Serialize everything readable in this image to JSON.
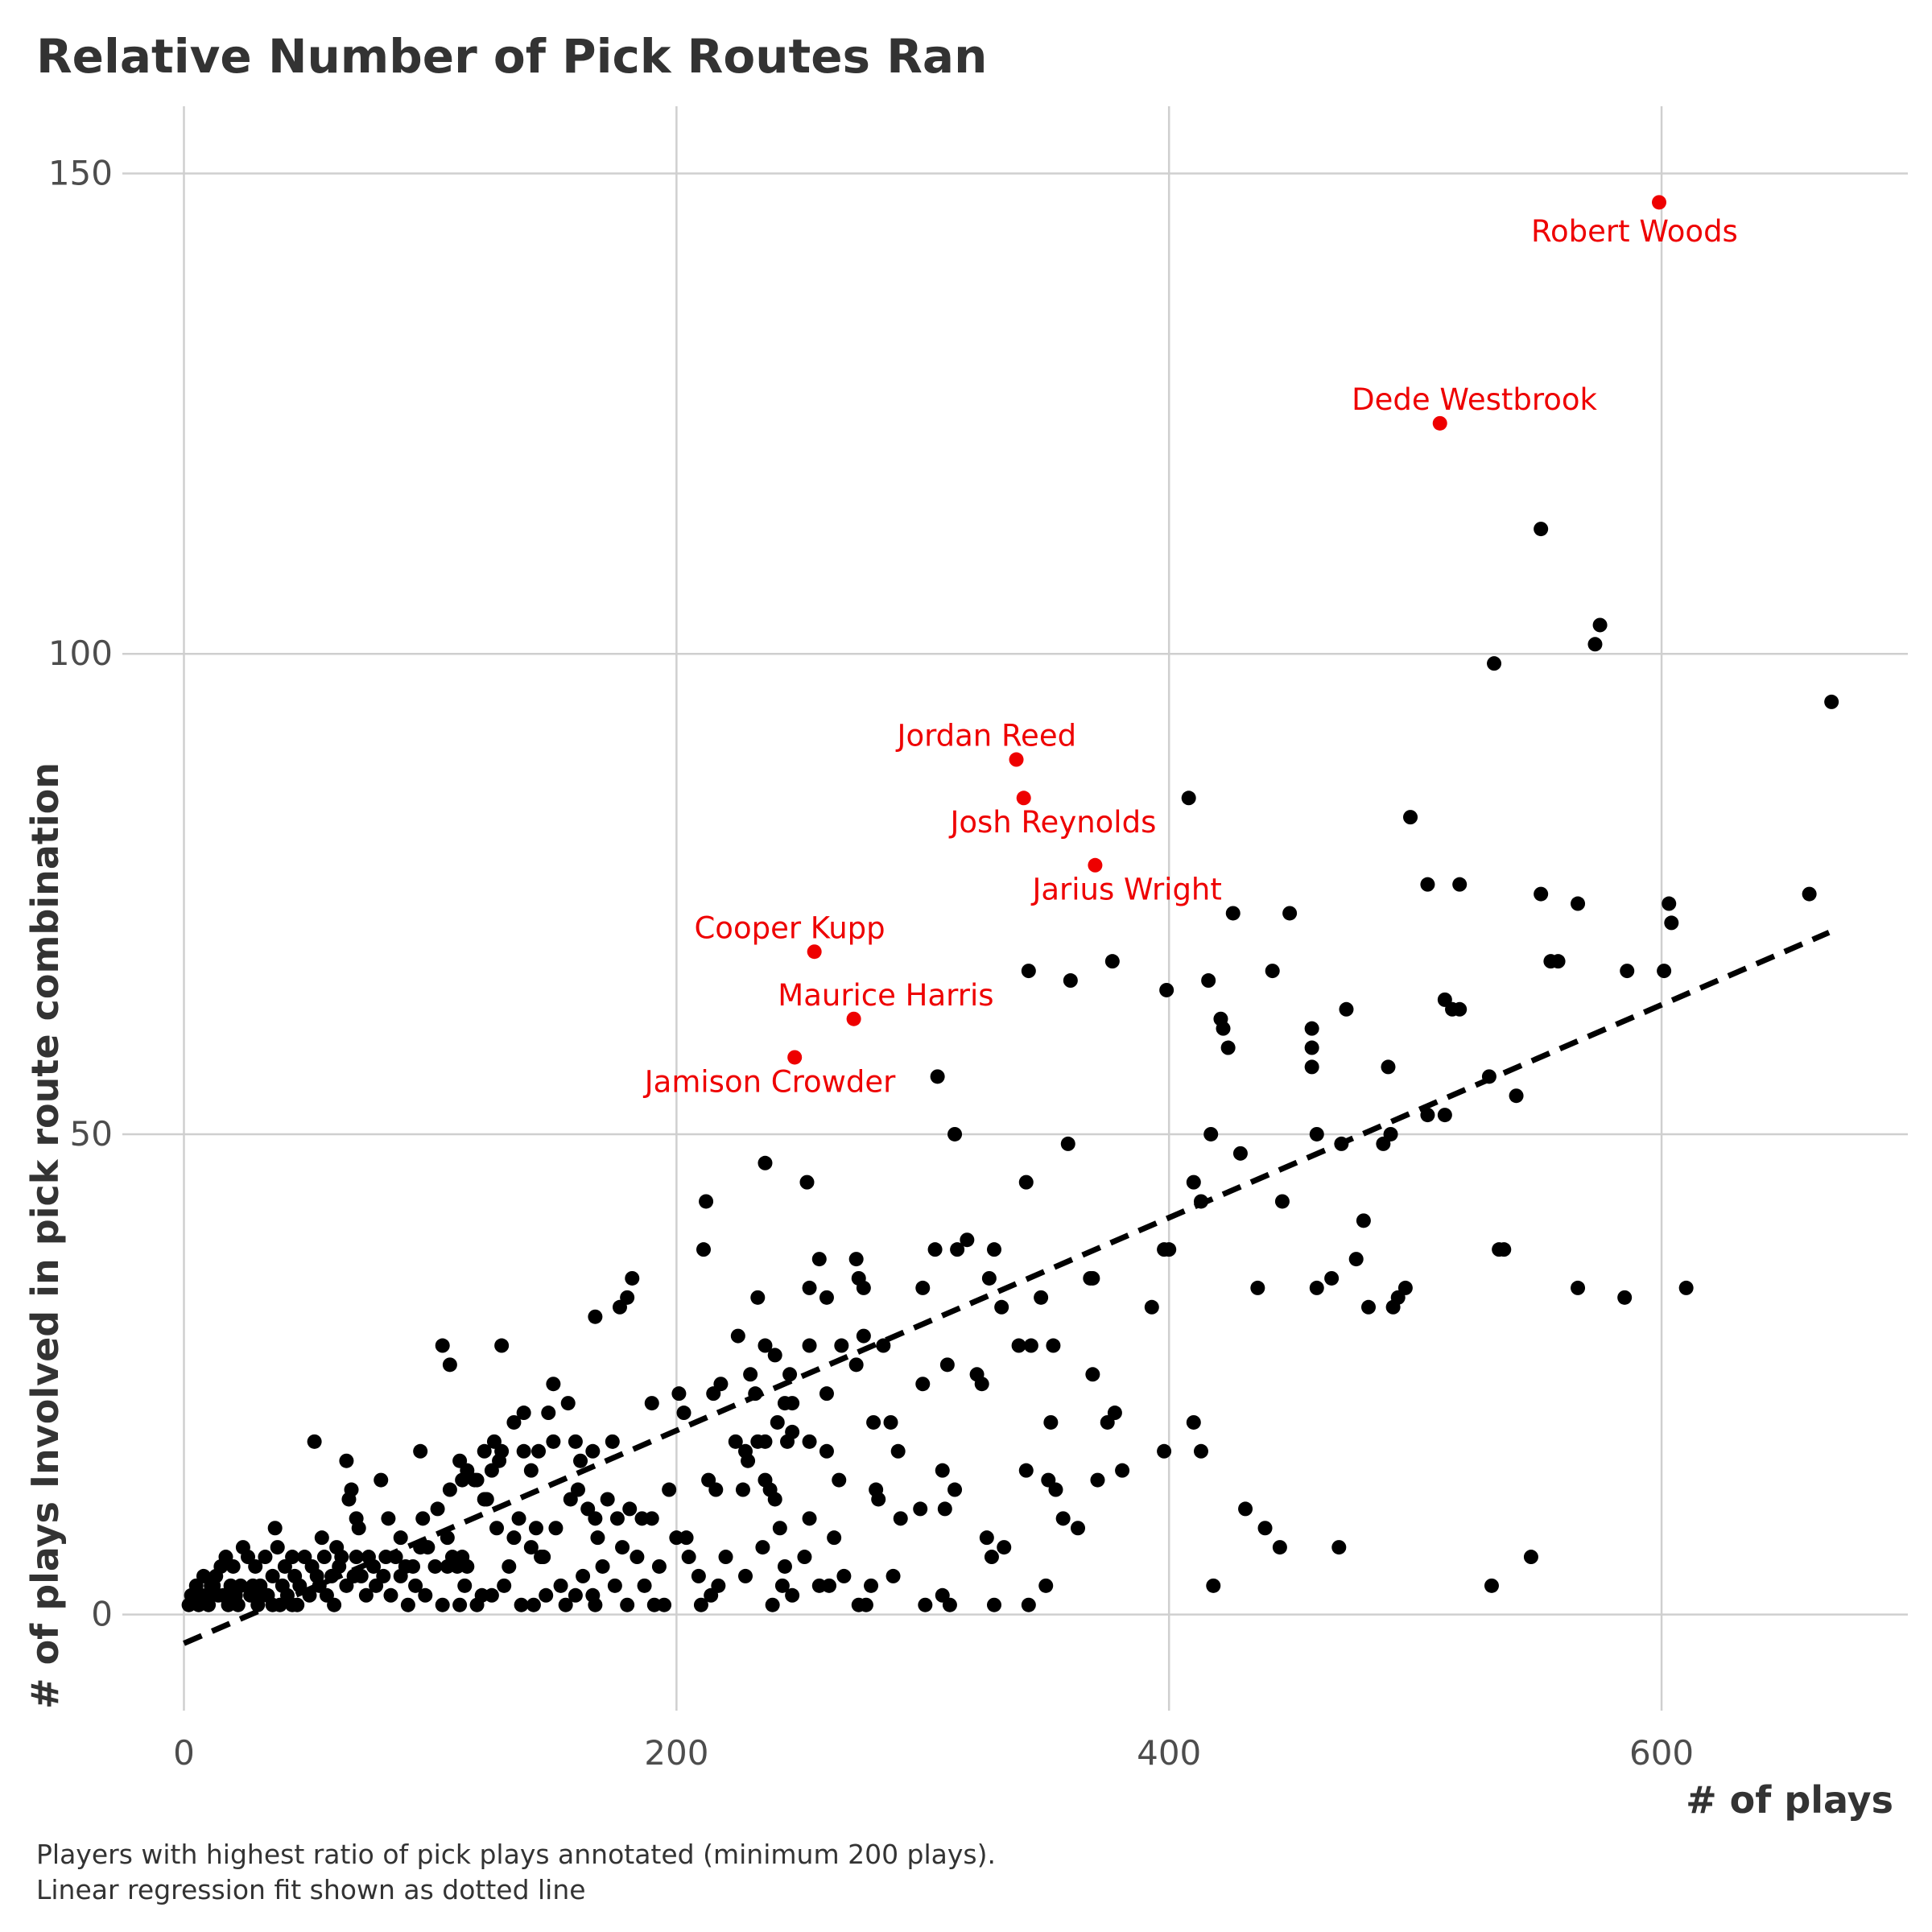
{
  "chart_data": {
    "type": "scatter",
    "title": "Relative Number of Pick Routes Ran",
    "xlabel": "# of plays",
    "ylabel": "# of plays Involved in pick route combination",
    "caption_lines": [
      "Players with highest ratio of pick plays annotated (minimum 200 plays).",
      "Linear regression fit shown as dotted line"
    ],
    "xlim": [
      -25,
      700
    ],
    "ylim": [
      -10,
      157
    ],
    "x_ticks": [
      0,
      200,
      400,
      600
    ],
    "y_ticks": [
      0,
      50,
      100,
      150
    ],
    "grid": true,
    "legend": "none",
    "colors": {
      "point": "#000000",
      "highlight": "#ee0000",
      "fit": "#000000"
    },
    "regression_line": {
      "style": "dashed",
      "from": [
        0,
        -3
      ],
      "to": [
        668,
        71
      ]
    },
    "highlighted": [
      {
        "name": "Robert Woods",
        "x": 599,
        "y": 147,
        "label_x": 589,
        "label_y": 144,
        "anchor": "middle"
      },
      {
        "name": "Dede Westbrook",
        "x": 510,
        "y": 124,
        "label_x": 524,
        "label_y": 126.5,
        "anchor": "middle"
      },
      {
        "name": "Jordan Reed",
        "x": 338,
        "y": 89,
        "label_x": 326,
        "label_y": 91.5,
        "anchor": "middle"
      },
      {
        "name": "Josh Reynolds",
        "x": 341,
        "y": 85,
        "label_x": 353,
        "label_y": 82.5,
        "anchor": "middle"
      },
      {
        "name": "Jarius Wright",
        "x": 370,
        "y": 78,
        "label_x": 383,
        "label_y": 75.5,
        "anchor": "middle"
      },
      {
        "name": "Cooper Kupp",
        "x": 256,
        "y": 69,
        "label_x": 246,
        "label_y": 71.5,
        "anchor": "middle"
      },
      {
        "name": "Maurice Harris",
        "x": 272,
        "y": 62,
        "label_x": 285,
        "label_y": 64.5,
        "anchor": "middle"
      },
      {
        "name": "Jamison Crowder",
        "x": 248,
        "y": 58,
        "label_x": 238,
        "label_y": 55.5,
        "anchor": "middle"
      }
    ],
    "points": [
      [
        551,
        113
      ],
      [
        573,
        101
      ],
      [
        575,
        103
      ],
      [
        532,
        99
      ],
      [
        669,
        95
      ],
      [
        408,
        85
      ],
      [
        498,
        83
      ],
      [
        505,
        76
      ],
      [
        518,
        76
      ],
      [
        551,
        75
      ],
      [
        566,
        74
      ],
      [
        603,
        74
      ],
      [
        604,
        72
      ],
      [
        660,
        75
      ],
      [
        426,
        73
      ],
      [
        449,
        73
      ],
      [
        377,
        68
      ],
      [
        343,
        67
      ],
      [
        360,
        66
      ],
      [
        416,
        66
      ],
      [
        442,
        67
      ],
      [
        555,
        68
      ],
      [
        558,
        68
      ],
      [
        586,
        67
      ],
      [
        601,
        67
      ],
      [
        399,
        65
      ],
      [
        421,
        62
      ],
      [
        422,
        61
      ],
      [
        424,
        59
      ],
      [
        458,
        61
      ],
      [
        458,
        59
      ],
      [
        458,
        57
      ],
      [
        472,
        63
      ],
      [
        512,
        64
      ],
      [
        515,
        63
      ],
      [
        518,
        63
      ],
      [
        489,
        57
      ],
      [
        530,
        56
      ],
      [
        541,
        54
      ],
      [
        306,
        56
      ],
      [
        313,
        50
      ],
      [
        359,
        49
      ],
      [
        417,
        50
      ],
      [
        429,
        48
      ],
      [
        460,
        50
      ],
      [
        470,
        49
      ],
      [
        487,
        49
      ],
      [
        490,
        50
      ],
      [
        505,
        52
      ],
      [
        512,
        52
      ],
      [
        342,
        45
      ],
      [
        410,
        45
      ],
      [
        413,
        43
      ],
      [
        446,
        43
      ],
      [
        236,
        47
      ],
      [
        253,
        45
      ],
      [
        212,
        43
      ],
      [
        211,
        38
      ],
      [
        479,
        41
      ],
      [
        258,
        37
      ],
      [
        273,
        37
      ],
      [
        305,
        38
      ],
      [
        314,
        38
      ],
      [
        318,
        39
      ],
      [
        329,
        38
      ],
      [
        368,
        35
      ],
      [
        369,
        35
      ],
      [
        398,
        38
      ],
      [
        400,
        38
      ],
      [
        300,
        34
      ],
      [
        276,
        34
      ],
      [
        274,
        35
      ],
      [
        254,
        34
      ],
      [
        327,
        35
      ],
      [
        233,
        33
      ],
      [
        261,
        33
      ],
      [
        182,
        35
      ],
      [
        180,
        33
      ],
      [
        177,
        32
      ],
      [
        167,
        31
      ],
      [
        332,
        32
      ],
      [
        348,
        33
      ],
      [
        393,
        32
      ],
      [
        436,
        34
      ],
      [
        460,
        34
      ],
      [
        466,
        35
      ],
      [
        476,
        37
      ],
      [
        496,
        34
      ],
      [
        493,
        33
      ],
      [
        491,
        32
      ],
      [
        481,
        32
      ],
      [
        534,
        38
      ],
      [
        536,
        38
      ],
      [
        566,
        34
      ],
      [
        585,
        33
      ],
      [
        610,
        34
      ],
      [
        105,
        28
      ],
      [
        108,
        26
      ],
      [
        129,
        28
      ],
      [
        225,
        29
      ],
      [
        236,
        28
      ],
      [
        240,
        27
      ],
      [
        254,
        28
      ],
      [
        267,
        28
      ],
      [
        273,
        26
      ],
      [
        276,
        29
      ],
      [
        284,
        28
      ],
      [
        310,
        26
      ],
      [
        339,
        28
      ],
      [
        344,
        28
      ],
      [
        353,
        28
      ],
      [
        369,
        25
      ],
      [
        324,
        24
      ],
      [
        322,
        25
      ],
      [
        300,
        24
      ],
      [
        261,
        23
      ],
      [
        246,
        25
      ],
      [
        247,
        22
      ],
      [
        230,
        25
      ],
      [
        232,
        23
      ],
      [
        218,
        24
      ],
      [
        215,
        23
      ],
      [
        201,
        23
      ],
      [
        203,
        21
      ],
      [
        190,
        22
      ],
      [
        150,
        24
      ],
      [
        138,
        21
      ],
      [
        134,
        20
      ],
      [
        150,
        18
      ],
      [
        148,
        21
      ],
      [
        159,
        18
      ],
      [
        156,
        22
      ],
      [
        161,
        16
      ],
      [
        166,
        17
      ],
      [
        174,
        18
      ],
      [
        224,
        18
      ],
      [
        228,
        17
      ],
      [
        233,
        18
      ],
      [
        236,
        18
      ],
      [
        241,
        20
      ],
      [
        244,
        22
      ],
      [
        245,
        18
      ],
      [
        247,
        19
      ],
      [
        254,
        18
      ],
      [
        261,
        17
      ],
      [
        280,
        20
      ],
      [
        287,
        20
      ],
      [
        290,
        17
      ],
      [
        308,
        15
      ],
      [
        352,
        20
      ],
      [
        375,
        20
      ],
      [
        378,
        21
      ],
      [
        410,
        20
      ],
      [
        413,
        17
      ],
      [
        129,
        17
      ],
      [
        126,
        18
      ],
      [
        122,
        17
      ],
      [
        125,
        15
      ],
      [
        128,
        16
      ],
      [
        138,
        17
      ],
      [
        144,
        17
      ],
      [
        141,
        15
      ],
      [
        119,
        14
      ],
      [
        112,
        16
      ],
      [
        115,
        15
      ],
      [
        113,
        14
      ],
      [
        122,
        12
      ],
      [
        118,
        14
      ],
      [
        108,
        13
      ],
      [
        96,
        17
      ],
      [
        53,
        18
      ],
      [
        66,
        16
      ],
      [
        68,
        13
      ],
      [
        67,
        12
      ],
      [
        80,
        14
      ],
      [
        70,
        10
      ],
      [
        71,
        9
      ],
      [
        83,
        10
      ],
      [
        88,
        8
      ],
      [
        103,
        11
      ],
      [
        97,
        10
      ],
      [
        96,
        7
      ],
      [
        107,
        8
      ],
      [
        109,
        6
      ],
      [
        107,
        5
      ],
      [
        111,
        5
      ],
      [
        113,
        6
      ],
      [
        115,
        5
      ],
      [
        123,
        12
      ],
      [
        127,
        9
      ],
      [
        134,
        8
      ],
      [
        136,
        10
      ],
      [
        141,
        7
      ],
      [
        143,
        9
      ],
      [
        145,
        6
      ],
      [
        151,
        9
      ],
      [
        157,
        12
      ],
      [
        160,
        13
      ],
      [
        164,
        11
      ],
      [
        167,
        10
      ],
      [
        168,
        8
      ],
      [
        172,
        12
      ],
      [
        176,
        10
      ],
      [
        181,
        11
      ],
      [
        186,
        10
      ],
      [
        190,
        10
      ],
      [
        197,
        13
      ],
      [
        200,
        8
      ],
      [
        204,
        8
      ],
      [
        213,
        14
      ],
      [
        216,
        13
      ],
      [
        227,
        13
      ],
      [
        229,
        16
      ],
      [
        236,
        14
      ],
      [
        238,
        13
      ],
      [
        240,
        12
      ],
      [
        242,
        9
      ],
      [
        254,
        10
      ],
      [
        264,
        8
      ],
      [
        266,
        14
      ],
      [
        281,
        13
      ],
      [
        282,
        12
      ],
      [
        291,
        10
      ],
      [
        299,
        11
      ],
      [
        309,
        11
      ],
      [
        313,
        13
      ],
      [
        326,
        8
      ],
      [
        328,
        6
      ],
      [
        333,
        7
      ],
      [
        342,
        15
      ],
      [
        351,
        14
      ],
      [
        354,
        13
      ],
      [
        357,
        10
      ],
      [
        363,
        9
      ],
      [
        371,
        14
      ],
      [
        381,
        15
      ],
      [
        398,
        17
      ],
      [
        431,
        11
      ],
      [
        439,
        9
      ],
      [
        445,
        7
      ],
      [
        469,
        7
      ],
      [
        531,
        3
      ],
      [
        547,
        6
      ],
      [
        418,
        3
      ],
      [
        343,
        1
      ],
      [
        350,
        3
      ],
      [
        329,
        1
      ],
      [
        311,
        1
      ],
      [
        308,
        2
      ],
      [
        301,
        1
      ],
      [
        274,
        1
      ],
      [
        277,
        1
      ],
      [
        262,
        3
      ],
      [
        243,
        3
      ],
      [
        247,
        2
      ],
      [
        239,
        1
      ],
      [
        217,
        3
      ],
      [
        214,
        2
      ],
      [
        210,
        1
      ],
      [
        195,
        1
      ],
      [
        191,
        1
      ],
      [
        187,
        3
      ],
      [
        180,
        1
      ],
      [
        175,
        3
      ],
      [
        166,
        2
      ],
      [
        167,
        1
      ],
      [
        159,
        2
      ],
      [
        155,
        1
      ],
      [
        147,
        2
      ],
      [
        142,
        1
      ],
      [
        137,
        1
      ],
      [
        130,
        3
      ],
      [
        125,
        2
      ],
      [
        119,
        1
      ],
      [
        112,
        1
      ],
      [
        105,
        1
      ],
      [
        98,
        2
      ],
      [
        94,
        3
      ],
      [
        91,
        1
      ],
      [
        84,
        2
      ],
      [
        78,
        3
      ],
      [
        74,
        2
      ],
      [
        69,
        4
      ],
      [
        63,
        5
      ],
      [
        62,
        7
      ],
      [
        57,
        6
      ],
      [
        56,
        8
      ],
      [
        54,
        4
      ],
      [
        49,
        6
      ],
      [
        45,
        4
      ],
      [
        41,
        5
      ],
      [
        38,
        7
      ],
      [
        37,
        9
      ],
      [
        33,
        6
      ],
      [
        31,
        3
      ],
      [
        29,
        5
      ],
      [
        26,
        6
      ],
      [
        24,
        7
      ],
      [
        20,
        5
      ],
      [
        17,
        6
      ],
      [
        15,
        5
      ],
      [
        13,
        4
      ],
      [
        11,
        3
      ],
      [
        9,
        2
      ],
      [
        8,
        4
      ],
      [
        5,
        3
      ],
      [
        3,
        2
      ],
      [
        2,
        1
      ],
      [
        6,
        1
      ],
      [
        10,
        1
      ],
      [
        14,
        2
      ],
      [
        18,
        1
      ],
      [
        21,
        2
      ],
      [
        23,
        3
      ],
      [
        27,
        2
      ],
      [
        30,
        1
      ],
      [
        34,
        2
      ],
      [
        36,
        1
      ],
      [
        40,
        3
      ],
      [
        42,
        2
      ],
      [
        44,
        1
      ],
      [
        47,
        3
      ],
      [
        51,
        2
      ],
      [
        58,
        2
      ],
      [
        61,
        1
      ],
      [
        66,
        3
      ],
      [
        72,
        4
      ],
      [
        77,
        5
      ],
      [
        81,
        4
      ],
      [
        86,
        6
      ],
      [
        90,
        5
      ],
      [
        52,
        5
      ],
      [
        44,
        6
      ],
      [
        36,
        4
      ],
      [
        28,
        3
      ],
      [
        19,
        3
      ],
      [
        12,
        3
      ],
      [
        7,
        2
      ],
      [
        16,
        2
      ],
      [
        22,
        1
      ],
      [
        32,
        2
      ],
      [
        39,
        1
      ],
      [
        46,
        1
      ],
      [
        55,
        3
      ],
      [
        60,
        4
      ],
      [
        64,
        6
      ],
      [
        70,
        6
      ],
      [
        75,
        6
      ],
      [
        82,
        6
      ],
      [
        88,
        4
      ],
      [
        93,
        5
      ],
      [
        99,
        7
      ],
      [
        102,
        5
      ],
      [
        114,
        3
      ],
      [
        121,
        2
      ],
      [
        132,
        5
      ],
      [
        146,
        6
      ],
      [
        153,
        3
      ],
      [
        162,
        4
      ],
      [
        170,
        5
      ],
      [
        178,
        7
      ],
      [
        184,
        6
      ],
      [
        193,
        5
      ],
      [
        205,
        6
      ],
      [
        209,
        4
      ],
      [
        220,
        6
      ],
      [
        228,
        4
      ],
      [
        235,
        7
      ],
      [
        244,
        5
      ],
      [
        252,
        6
      ],
      [
        258,
        3
      ],
      [
        268,
        4
      ],
      [
        279,
        3
      ],
      [
        288,
        4
      ]
    ]
  }
}
